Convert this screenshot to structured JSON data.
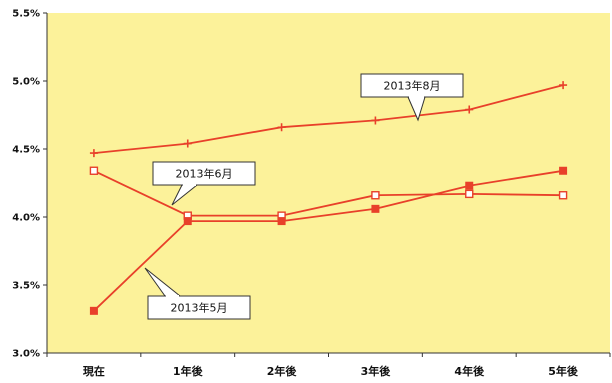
{
  "chart_data": {
    "type": "line",
    "title": "",
    "xlabel": "",
    "ylabel": "",
    "categories": [
      "現在",
      "1年後",
      "2年後",
      "3年後",
      "4年後",
      "5年後"
    ],
    "y_ticks": [
      "3.0%",
      "3.5%",
      "4.0%",
      "4.5%",
      "5.0%",
      "5.5%"
    ],
    "ylim": [
      3.0,
      5.5
    ],
    "grid": false,
    "plot_background": "#fcf29a",
    "series_color": "#e8402a",
    "series": [
      {
        "name": "2013年8月",
        "marker": "plus",
        "values": [
          4.47,
          4.54,
          4.66,
          4.71,
          4.79,
          4.97
        ]
      },
      {
        "name": "2013年6月",
        "marker": "open-square",
        "values": [
          4.34,
          4.01,
          4.01,
          4.16,
          4.17,
          4.16
        ]
      },
      {
        "name": "2013年5月",
        "marker": "filled-square",
        "values": [
          3.31,
          3.97,
          3.97,
          4.06,
          4.23,
          4.34
        ]
      }
    ],
    "callouts": [
      {
        "label": "2013年8月",
        "series": 0
      },
      {
        "label": "2013年6月",
        "series": 1
      },
      {
        "label": "2013年5月",
        "series": 2
      }
    ]
  }
}
